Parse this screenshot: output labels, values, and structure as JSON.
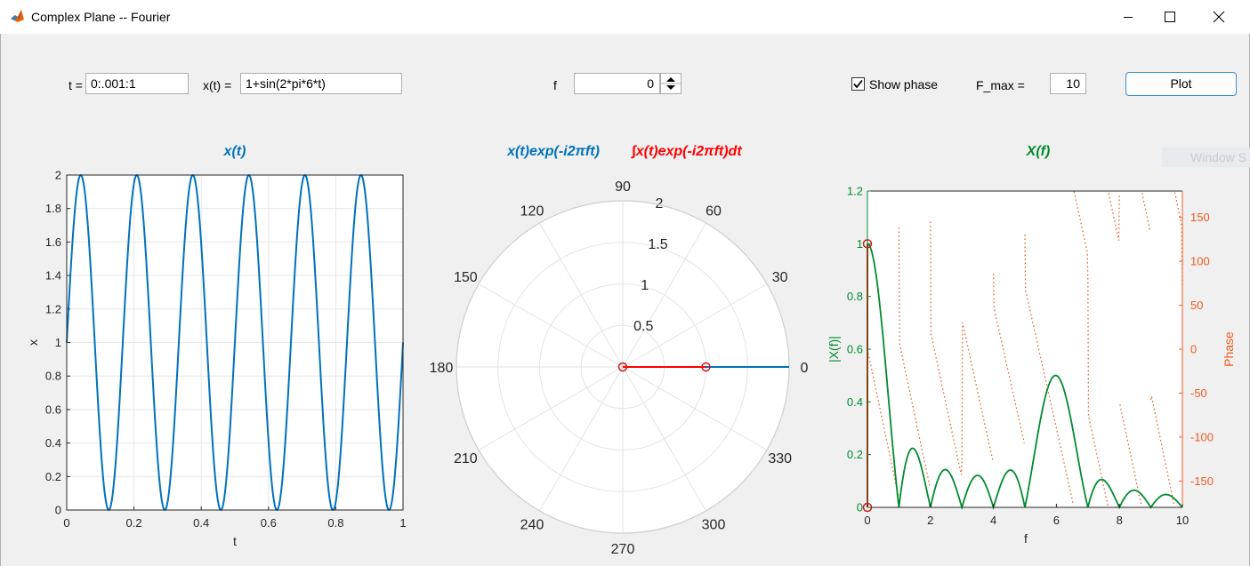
{
  "window": {
    "title": "Complex Plane -- Fourier",
    "app_icon": "matlab-icon",
    "controls": [
      "minimize-icon",
      "maximize-icon",
      "close-icon"
    ]
  },
  "controls": {
    "t_label": "t =",
    "t_value": "0:.001:1",
    "x_label": "x(t) =",
    "x_value": "1+sin(2*pi*6*t)",
    "f_label": "f",
    "f_value": "0",
    "show_phase_label": "Show phase",
    "show_phase_checked": true,
    "fmax_label": "F_max =",
    "fmax_value": "10",
    "plot_button": "Plot",
    "ghost_text": "Window S"
  },
  "colors": {
    "matlab_blue": "#0072bd",
    "red": "#ff0000",
    "green": "#008c2e",
    "phase_orange": "#f05a23"
  },
  "chart_data": [
    {
      "type": "line",
      "title": "x(t)",
      "xlabel": "t",
      "ylabel": "x",
      "xlim": [
        0,
        1
      ],
      "ylim": [
        0,
        2
      ],
      "xticks": [
        "0",
        "0.2",
        "0.4",
        "0.6",
        "0.8",
        "1"
      ],
      "yticks": [
        "0",
        "0.2",
        "0.4",
        "0.6",
        "0.8",
        "1",
        "1.2",
        "1.4",
        "1.6",
        "1.8",
        "2"
      ],
      "grid": true,
      "series": [
        {
          "function": "1+sin(2*pi*6*t)",
          "x_start": 0,
          "x_end": 1,
          "x_step": 0.001
        }
      ]
    },
    {
      "type": "polar",
      "title_left": "x(t)exp(-i2πft)",
      "title_right": "∫x(t)exp(-i2πft)dt",
      "rlim": [
        0,
        2
      ],
      "rticks": [
        "0.5",
        "1",
        "1.5",
        "2"
      ],
      "theta_ticks": [
        "0",
        "30",
        "60",
        "90",
        "120",
        "150",
        "180",
        "210",
        "240",
        "270",
        "300",
        "330"
      ],
      "series": [
        {
          "legend": "x(t)exp(-i2πft)",
          "points": [
            [
              0,
              0
            ],
            [
              2,
              0
            ]
          ]
        },
        {
          "legend": "∫x(t)exp(-i2πft)dt",
          "points": [
            [
              0,
              0
            ],
            [
              1,
              0
            ]
          ],
          "markers": [
            [
              0,
              0
            ],
            [
              1,
              0
            ]
          ]
        }
      ]
    },
    {
      "type": "line",
      "title": "X(f)",
      "xlabel": "f",
      "ylabel": "|X(f)|",
      "y2label": "Phase",
      "xlim": [
        0,
        10
      ],
      "ylim": [
        0,
        1.2
      ],
      "y2lim": [
        -180,
        180
      ],
      "xticks": [
        "0",
        "2",
        "4",
        "6",
        "8",
        "10"
      ],
      "yticks": [
        "0",
        "0.2",
        "0.4",
        "0.6",
        "0.8",
        "1",
        "1.2"
      ],
      "y2ticks": [
        "-150",
        "-100",
        "-50",
        "0",
        "50",
        "100",
        "150"
      ],
      "series": [
        {
          "name": "|X(f)|",
          "function": "|X(f)| of 1+sin(2*pi*6*t) on [0,1]",
          "peaks": [
            [
              0,
              1
            ],
            [
              6,
              0.5
            ]
          ],
          "zeros_at_integers": true
        },
        {
          "name": "Phase",
          "style": "dotted",
          "function": "arg X(f)"
        },
        {
          "name": "current f",
          "points": [
            [
              0,
              0
            ],
            [
              0,
              1
            ]
          ],
          "markers": [
            [
              0,
              0
            ],
            [
              0,
              1
            ]
          ]
        }
      ]
    }
  ]
}
